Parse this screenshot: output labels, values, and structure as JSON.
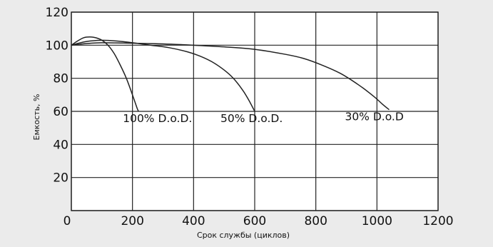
{
  "chart_data": {
    "type": "line",
    "title": "",
    "xlabel": "Срок службы (циклов)",
    "ylabel": "Емкость, %",
    "xlim": [
      0,
      1200
    ],
    "ylim": [
      0,
      120
    ],
    "x_ticks": [
      "0",
      "200",
      "400",
      "600",
      "800",
      "1000",
      "1200"
    ],
    "y_ticks": [
      "0",
      "20",
      "40",
      "60",
      "80",
      "100",
      "120"
    ],
    "grid": true,
    "legend": "none",
    "colors": {
      "line": "#222222",
      "grid": "#222222",
      "plot_bg": "#ffffff",
      "page_bg": "#ebebeb"
    },
    "series": [
      {
        "label": "100% D.o.D.",
        "x": [
          0,
          20,
          40,
          60,
          80,
          100,
          120,
          140,
          160,
          180,
          200,
          215,
          220
        ],
        "y": [
          100,
          102.5,
          104.5,
          105,
          104.5,
          103,
          100,
          95,
          88,
          80,
          70,
          62,
          60
        ]
      },
      {
        "label": "50% D.o.D.",
        "x": [
          0,
          30,
          60,
          100,
          150,
          200,
          260,
          320,
          380,
          420,
          460,
          500,
          530,
          560,
          580,
          600
        ],
        "y": [
          100,
          101.5,
          102.5,
          103,
          102.5,
          101.5,
          100,
          98.5,
          96,
          93.5,
          90,
          85,
          80,
          73,
          67,
          60
        ]
      },
      {
        "label": "30% D.o.D",
        "x": [
          0,
          50,
          100,
          200,
          300,
          400,
          500,
          600,
          700,
          760,
          820,
          880,
          940,
          990,
          1020,
          1040
        ],
        "y": [
          100,
          101,
          101.5,
          101.2,
          100.8,
          100,
          99,
          97.5,
          94.5,
          92,
          88,
          83,
          76,
          69,
          64,
          61
        ]
      }
    ]
  }
}
